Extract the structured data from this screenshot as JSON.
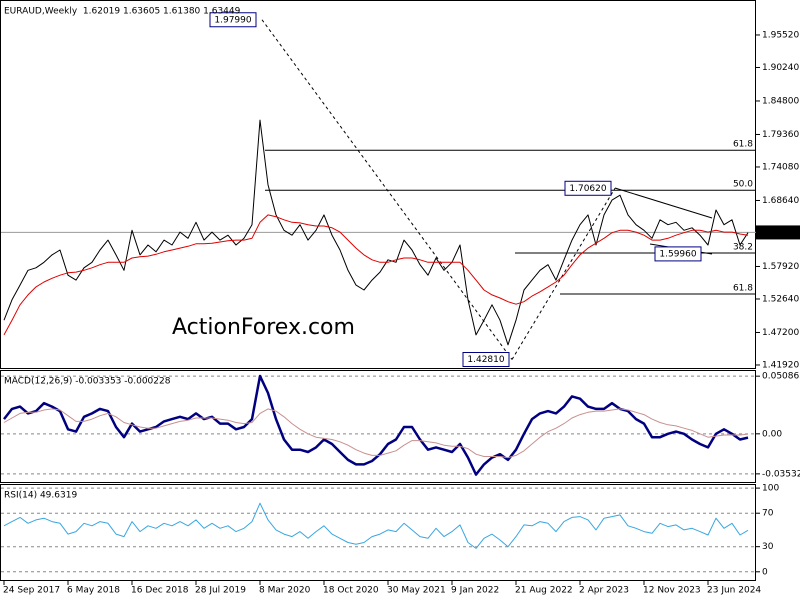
{
  "chart_data": [
    {
      "type": "line",
      "title": "EURAUD,Weekly  1.62019 1.63605 1.61380 1.63449",
      "watermark": "ActionForex.com",
      "categories": [
        "24 Sep 2017",
        null,
        null,
        null,
        null,
        null,
        null,
        null,
        "6 May 2018",
        null,
        null,
        null,
        null,
        null,
        null,
        null,
        "16 Dec 2018",
        null,
        null,
        null,
        null,
        null,
        null,
        null,
        "28 Jul 2019",
        null,
        null,
        null,
        null,
        null,
        null,
        null,
        "8 Mar 2020",
        null,
        null,
        null,
        null,
        null,
        null,
        null,
        "18 Oct 2020",
        null,
        null,
        null,
        null,
        null,
        null,
        null,
        "30 May 2021",
        null,
        null,
        null,
        null,
        null,
        null,
        null,
        "9 Jan 2022",
        null,
        null,
        null,
        null,
        null,
        null,
        null,
        "21 Aug 2022",
        null,
        null,
        null,
        null,
        null,
        null,
        null,
        "2 Apr 2023",
        null,
        null,
        null,
        null,
        null,
        null,
        null,
        "12 Nov 2023",
        null,
        null,
        null,
        null,
        null,
        null,
        null,
        "23 Jun 2024",
        null,
        null,
        null,
        null,
        null
      ],
      "series": [
        {
          "color": "#000000",
          "values": [
            1.492,
            1.525,
            1.549,
            1.573,
            1.577,
            1.586,
            1.598,
            1.606,
            1.565,
            1.557,
            1.577,
            1.586,
            1.606,
            1.622,
            1.598,
            1.573,
            1.638,
            1.598,
            1.614,
            1.603,
            1.622,
            1.614,
            1.635,
            1.625,
            1.651,
            1.622,
            1.635,
            1.622,
            1.63,
            1.614,
            1.625,
            1.647,
            1.817,
            1.712,
            1.663,
            1.638,
            1.63,
            1.647,
            1.622,
            1.638,
            1.663,
            1.63,
            1.606,
            1.573,
            1.549,
            1.541,
            1.557,
            1.57,
            1.59,
            1.586,
            1.622,
            1.606,
            1.582,
            1.565,
            1.593,
            1.573,
            1.586,
            1.614,
            1.525,
            1.468,
            1.492,
            1.517,
            1.492,
            1.452,
            1.492,
            1.541,
            1.557,
            1.573,
            1.582,
            1.557,
            1.59,
            1.622,
            1.647,
            1.663,
            1.614,
            1.663,
            1.687,
            1.695,
            1.663,
            1.647,
            1.638,
            1.625,
            1.655,
            1.647,
            1.651,
            1.638,
            1.642,
            1.63,
            1.614,
            1.671,
            1.647,
            1.655,
            1.614,
            1.634
          ]
        },
        {
          "color": "#e00000",
          "values": [
            1.468,
            1.492,
            1.517,
            1.533,
            1.546,
            1.554,
            1.56,
            1.565,
            1.569,
            1.57,
            1.573,
            1.577,
            1.582,
            1.586,
            1.586,
            1.586,
            1.593,
            1.595,
            1.596,
            1.599,
            1.603,
            1.606,
            1.609,
            1.612,
            1.616,
            1.616,
            1.617,
            1.619,
            1.621,
            1.622,
            1.622,
            1.625,
            1.651,
            1.663,
            1.66,
            1.655,
            1.651,
            1.65,
            1.647,
            1.645,
            1.645,
            1.642,
            1.635,
            1.622,
            1.609,
            1.598,
            1.59,
            1.586,
            1.586,
            1.59,
            1.593,
            1.593,
            1.59,
            1.586,
            1.586,
            1.586,
            1.586,
            1.586,
            1.573,
            1.557,
            1.541,
            1.533,
            1.528,
            1.522,
            1.518,
            1.522,
            1.531,
            1.538,
            1.546,
            1.554,
            1.565,
            1.582,
            1.598,
            1.609,
            1.617,
            1.625,
            1.634,
            1.638,
            1.638,
            1.635,
            1.63,
            1.622,
            1.622,
            1.625,
            1.63,
            1.634,
            1.638,
            1.638,
            1.635,
            1.638,
            1.635,
            1.635,
            1.632,
            1.63
          ]
        }
      ],
      "ylim": [
        1.4143,
        2.012
      ],
      "yticks": [
        {
          "value": 1.9552,
          "label": "1.95520"
        },
        {
          "value": 1.9024,
          "label": "1.90240"
        },
        {
          "value": 1.848,
          "label": "1.84800"
        },
        {
          "value": 1.7936,
          "label": "1.79360"
        },
        {
          "value": 1.7408,
          "label": "1.74080"
        },
        {
          "value": 1.6864,
          "label": "1.68640"
        },
        {
          "value": 1.5792,
          "label": "1.57920"
        },
        {
          "value": 1.5264,
          "label": "1.52640"
        },
        {
          "value": 1.472,
          "label": "1.47200"
        },
        {
          "value": 1.4192,
          "label": "1.41920"
        }
      ],
      "last_price": 1.63449,
      "annotations": [
        {
          "label": "1.97990",
          "value": 1.9799
        },
        {
          "label": "1.70620",
          "value": 1.7062
        },
        {
          "label": "1.59960",
          "value": 1.5996
        },
        {
          "label": "1.42810",
          "value": 1.4281
        }
      ],
      "levels": [
        {
          "label": "61.8",
          "value": 1.768
        },
        {
          "label": "50.0",
          "value": 1.703
        },
        {
          "label": "38.2",
          "value": 1.601
        },
        {
          "label": "61.8",
          "value": 1.5345
        }
      ],
      "grid": false
    },
    {
      "type": "line",
      "title": "MACD(12,26,9) -0.003353 -0.000228",
      "series": [
        {
          "color": "#000080",
          "values": [
            0.013,
            0.022,
            0.024,
            0.018,
            0.02,
            0.027,
            0.024,
            0.02,
            0.004,
            0.002,
            0.015,
            0.018,
            0.022,
            0.02,
            0.006,
            -0.003,
            0.009,
            0.002,
            0.004,
            0.006,
            0.011,
            0.013,
            0.015,
            0.013,
            0.018,
            0.013,
            0.015,
            0.009,
            0.009,
            0.004,
            0.006,
            0.013,
            0.051,
            0.036,
            0.013,
            -0.005,
            -0.014,
            -0.014,
            -0.016,
            -0.012,
            -0.005,
            -0.009,
            -0.016,
            -0.023,
            -0.027,
            -0.027,
            -0.024,
            -0.018,
            -0.009,
            -0.005,
            0.006,
            0.006,
            -0.005,
            -0.014,
            -0.012,
            -0.014,
            -0.016,
            -0.009,
            -0.021,
            -0.036,
            -0.027,
            -0.021,
            -0.018,
            -0.023,
            -0.014,
            0.0,
            0.013,
            0.018,
            0.02,
            0.018,
            0.024,
            0.033,
            0.031,
            0.024,
            0.022,
            0.022,
            0.027,
            0.022,
            0.02,
            0.013,
            0.009,
            -0.003,
            -0.003,
            0.0,
            0.002,
            0.0,
            -0.005,
            -0.009,
            -0.012,
            0.0,
            0.004,
            0.0,
            -0.005,
            -0.003353
          ]
        },
        {
          "color": "#c89090",
          "values": [
            0.01,
            0.014,
            0.018,
            0.019,
            0.019,
            0.021,
            0.022,
            0.021,
            0.016,
            0.011,
            0.011,
            0.013,
            0.016,
            0.018,
            0.015,
            0.01,
            0.008,
            0.006,
            0.005,
            0.005,
            0.007,
            0.009,
            0.011,
            0.012,
            0.014,
            0.014,
            0.014,
            0.013,
            0.012,
            0.01,
            0.009,
            0.01,
            0.018,
            0.022,
            0.02,
            0.015,
            0.009,
            0.004,
            0.0,
            -0.003,
            -0.004,
            -0.005,
            -0.007,
            -0.01,
            -0.014,
            -0.017,
            -0.019,
            -0.019,
            -0.017,
            -0.015,
            -0.01,
            -0.006,
            -0.006,
            -0.007,
            -0.008,
            -0.01,
            -0.011,
            -0.011,
            -0.013,
            -0.018,
            -0.02,
            -0.02,
            -0.02,
            -0.021,
            -0.019,
            -0.015,
            -0.009,
            -0.003,
            0.002,
            0.005,
            0.009,
            0.014,
            0.017,
            0.019,
            0.02,
            0.02,
            0.021,
            0.022,
            0.021,
            0.019,
            0.017,
            0.013,
            0.01,
            0.008,
            0.007,
            0.005,
            0.003,
            0.0,
            -0.003,
            -0.002,
            -0.001,
            -0.001,
            -0.001,
            -0.000228
          ]
        }
      ],
      "ylim": [
        -0.0425,
        0.0563
      ],
      "yticks": [
        0.050863,
        {
          "value": 0,
          "label": "0.00"
        },
        -0.035322
      ],
      "grid": true
    },
    {
      "type": "line",
      "title": "RSI(14) 49.6319",
      "series": [
        {
          "color": "#3aa6e0",
          "values": [
            55,
            60,
            65,
            58,
            62,
            64,
            60,
            58,
            45,
            48,
            58,
            55,
            60,
            58,
            45,
            42,
            60,
            48,
            55,
            52,
            58,
            55,
            60,
            55,
            62,
            52,
            58,
            52,
            55,
            48,
            52,
            60,
            82,
            62,
            50,
            45,
            42,
            48,
            40,
            48,
            55,
            45,
            40,
            35,
            33,
            35,
            42,
            45,
            50,
            48,
            58,
            50,
            42,
            40,
            52,
            42,
            48,
            56,
            35,
            28,
            40,
            45,
            38,
            30,
            42,
            56,
            55,
            60,
            58,
            48,
            60,
            65,
            66,
            62,
            50,
            64,
            66,
            68,
            55,
            52,
            48,
            46,
            58,
            54,
            56,
            50,
            52,
            48,
            44,
            64,
            52,
            58,
            44,
            49.6319
          ]
        }
      ],
      "ylim": [
        -9.8,
        104.9
      ],
      "yticks": [
        100,
        70,
        30,
        0
      ],
      "grid": true
    }
  ]
}
